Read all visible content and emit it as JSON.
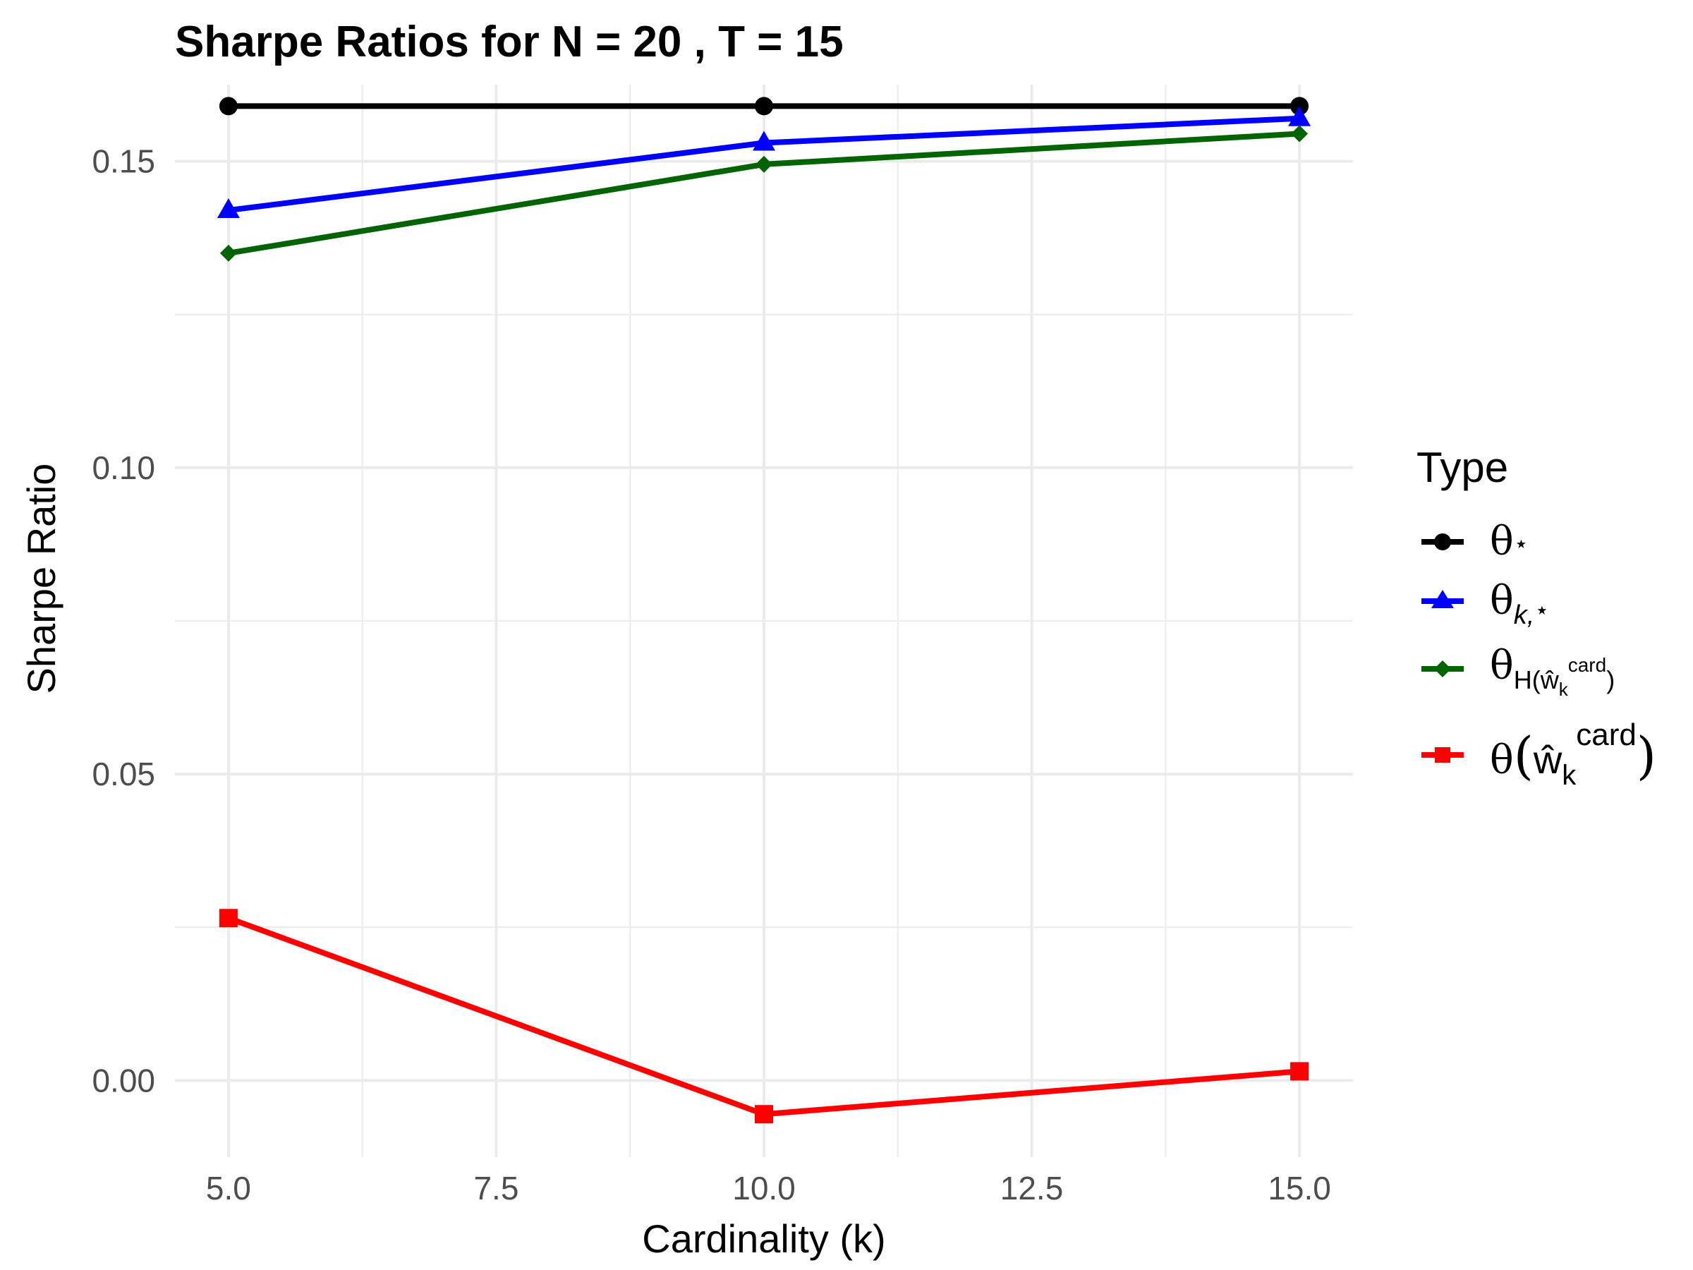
{
  "chart_data": {
    "type": "line",
    "title": "Sharpe Ratios for N = 20 , T = 15",
    "xlabel": "Cardinality (k)",
    "ylabel": "Sharpe Ratio",
    "x": [
      5,
      10,
      15
    ],
    "xlim": [
      4.5,
      15.5
    ],
    "ylim": [
      -0.0125,
      0.1625
    ],
    "x_ticks": [
      5.0,
      7.5,
      10.0,
      12.5,
      15.0
    ],
    "x_tick_labels": [
      "5.0",
      "7.5",
      "10.0",
      "12.5",
      "15.0"
    ],
    "y_ticks": [
      0.0,
      0.05,
      0.1,
      0.15
    ],
    "y_tick_labels": [
      "0.00",
      "0.05",
      "0.10",
      "0.15"
    ],
    "grid": true,
    "legend_title": "Type",
    "legend_position": "right",
    "series": [
      {
        "name": "θ*",
        "color": "#000000",
        "marker": "circle",
        "values": [
          0.159,
          0.159,
          0.159
        ]
      },
      {
        "name": "θk,*",
        "color": "#0000ff",
        "marker": "triangle",
        "values": [
          0.142,
          0.153,
          0.157
        ]
      },
      {
        "name": "θH(ŵk card)",
        "color": "#006400",
        "marker": "diamond",
        "values": [
          0.135,
          0.1495,
          0.1545
        ]
      },
      {
        "name": "θ(ŵk card)",
        "color": "#ff0000",
        "marker": "square",
        "values": [
          0.0265,
          -0.0055,
          0.0015
        ]
      }
    ]
  }
}
